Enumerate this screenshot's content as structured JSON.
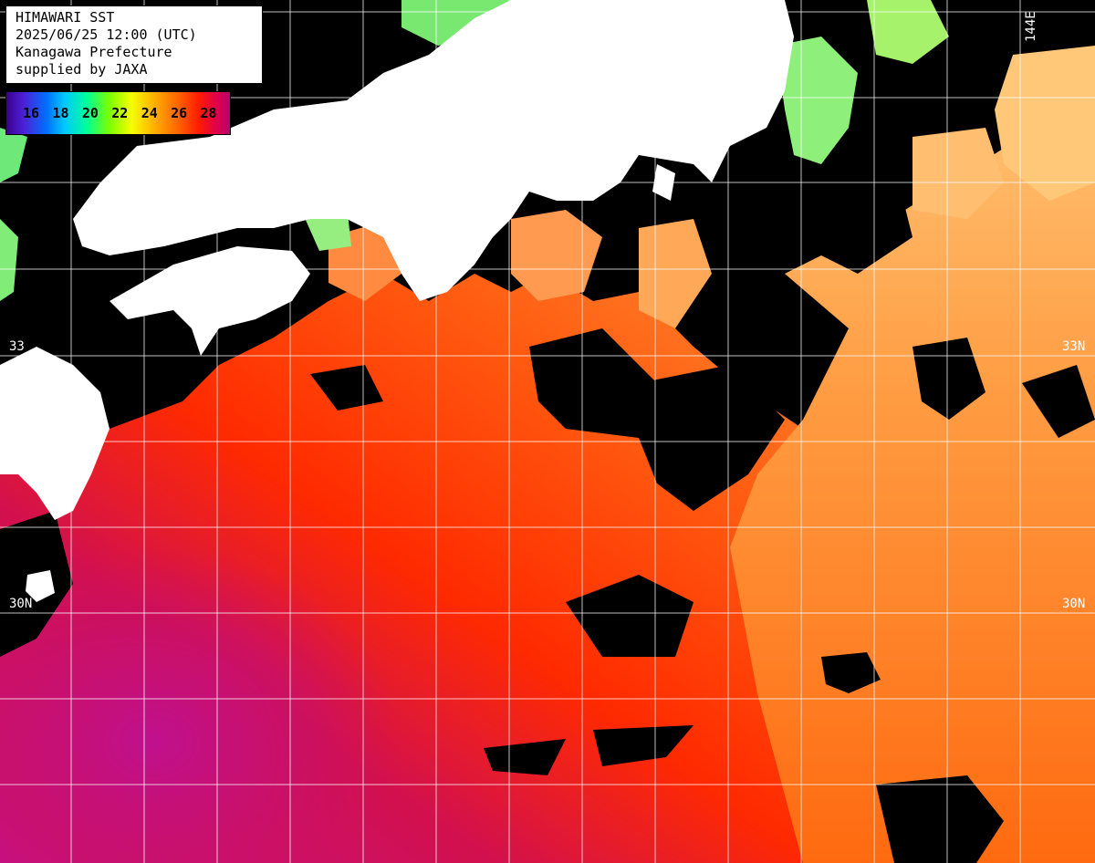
{
  "info": {
    "line1": "HIMAWARI SST",
    "line2": "2025/06/25 12:00 (UTC)",
    "line3": "Kanagawa Prefecture",
    "line4": "supplied by JAXA"
  },
  "legend": {
    "labels": [
      "16",
      "18",
      "20",
      "22",
      "24",
      "26",
      "28"
    ],
    "unit_range": [
      15,
      29
    ]
  },
  "grid_labels": {
    "lat_33_right": "33N",
    "lat_33_left": "33",
    "lat_30_right": "30N",
    "lat_30_left": "30N",
    "lon_top": "144E"
  },
  "colors": {
    "land": "#ffffff",
    "cloud": "#000000",
    "grid": "#ffffff",
    "warm_sea": "#ff3a00",
    "hot_sea": "#c8107a",
    "mid_sea": "#ff7a1a",
    "cool_sea": "#ffb066",
    "cold_coast": "#8cf07a"
  }
}
